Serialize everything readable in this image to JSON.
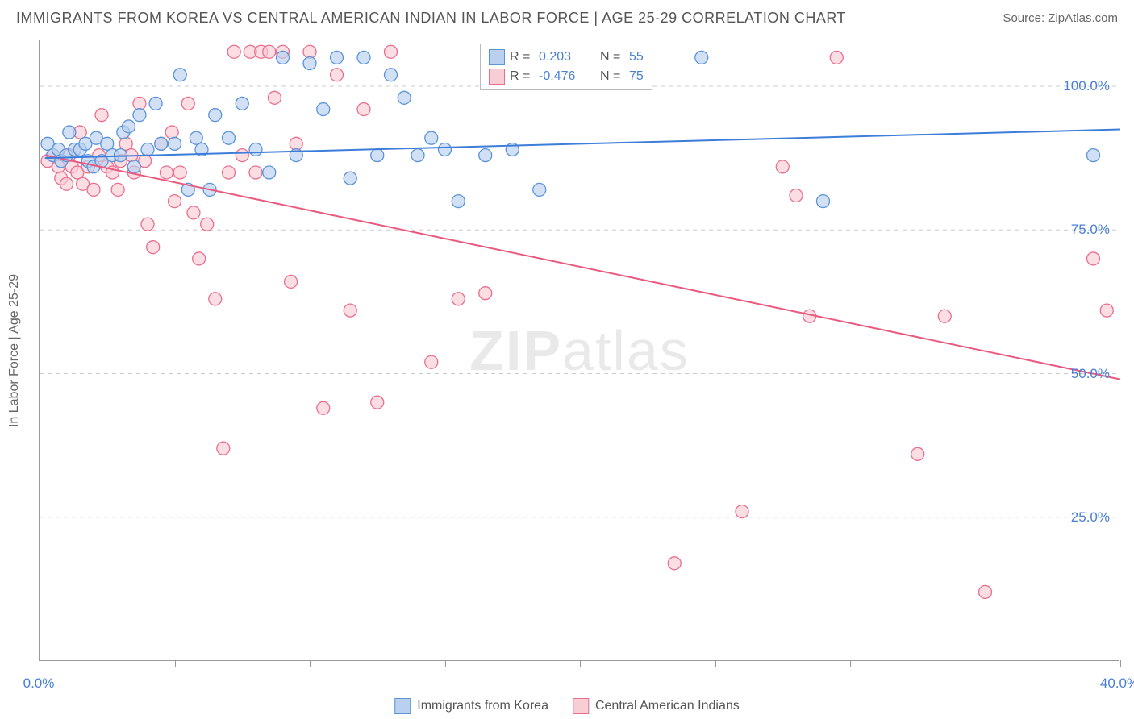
{
  "title": "IMMIGRANTS FROM KOREA VS CENTRAL AMERICAN INDIAN IN LABOR FORCE | AGE 25-29 CORRELATION CHART",
  "source": "Source: ZipAtlas.com",
  "y_axis_label": "In Labor Force | Age 25-29",
  "watermark_thin": "ZIP",
  "watermark_bold": "atlas",
  "chart": {
    "type": "scatter",
    "xlim": [
      0,
      40
    ],
    "ylim": [
      0,
      108
    ],
    "x_ticks": [
      0,
      5,
      10,
      15,
      20,
      25,
      30,
      35,
      40
    ],
    "x_tick_labels": [
      "0.0%",
      "",
      "",
      "",
      "",
      "",
      "",
      "",
      "40.0%"
    ],
    "y_ticks": [
      25,
      50,
      75,
      100
    ],
    "y_tick_labels": [
      "25.0%",
      "50.0%",
      "75.0%",
      "100.0%"
    ],
    "grid_color": "#cccccc",
    "axis_color": "#999999",
    "background_color": "#ffffff",
    "marker_radius": 8,
    "marker_stroke_width": 1.3,
    "line_width": 2,
    "series": [
      {
        "id": "korea",
        "label": "Immigrants from Korea",
        "fill_color": "#b9d0ee",
        "stroke_color": "#5c94d8",
        "line_color": "#3b7dd8",
        "R": "0.203",
        "N": "55",
        "trend": {
          "x1": 0.2,
          "y1": 87.5,
          "x2": 40,
          "y2": 92.5
        },
        "points": [
          [
            0.3,
            90
          ],
          [
            0.5,
            88
          ],
          [
            0.7,
            89
          ],
          [
            0.8,
            87
          ],
          [
            1.0,
            88
          ],
          [
            1.1,
            92
          ],
          [
            1.3,
            89
          ],
          [
            1.5,
            89
          ],
          [
            1.7,
            90
          ],
          [
            1.8,
            87
          ],
          [
            2.0,
            86
          ],
          [
            2.1,
            91
          ],
          [
            2.3,
            87
          ],
          [
            2.5,
            90
          ],
          [
            2.7,
            88
          ],
          [
            3.0,
            88
          ],
          [
            3.1,
            92
          ],
          [
            3.3,
            93
          ],
          [
            3.5,
            86
          ],
          [
            3.7,
            95
          ],
          [
            4.0,
            89
          ],
          [
            4.3,
            97
          ],
          [
            4.5,
            90
          ],
          [
            5.0,
            90
          ],
          [
            5.2,
            102
          ],
          [
            5.5,
            82
          ],
          [
            5.8,
            91
          ],
          [
            6.0,
            89
          ],
          [
            6.3,
            82
          ],
          [
            6.5,
            95
          ],
          [
            7.0,
            91
          ],
          [
            7.5,
            97
          ],
          [
            8.0,
            89
          ],
          [
            8.5,
            85
          ],
          [
            9.0,
            105
          ],
          [
            9.5,
            88
          ],
          [
            10.0,
            104
          ],
          [
            10.5,
            96
          ],
          [
            11.0,
            105
          ],
          [
            11.5,
            84
          ],
          [
            12.0,
            105
          ],
          [
            12.5,
            88
          ],
          [
            13.0,
            102
          ],
          [
            13.5,
            98
          ],
          [
            14.0,
            88
          ],
          [
            14.5,
            91
          ],
          [
            15.0,
            89
          ],
          [
            15.5,
            80
          ],
          [
            16.5,
            88
          ],
          [
            17.5,
            89
          ],
          [
            18.5,
            82
          ],
          [
            24.5,
            105
          ],
          [
            29.0,
            80
          ],
          [
            39.0,
            88
          ]
        ]
      },
      {
        "id": "cai",
        "label": "Central American Indians",
        "fill_color": "#f7cdd6",
        "stroke_color": "#ea6f8e",
        "line_color": "#ea5a80",
        "R": "-0.476",
        "N": "75",
        "trend": {
          "x1": 0.2,
          "y1": 88,
          "x2": 40,
          "y2": 49
        },
        "points": [
          [
            0.3,
            87
          ],
          [
            0.5,
            88
          ],
          [
            0.7,
            86
          ],
          [
            0.8,
            84
          ],
          [
            1.0,
            83
          ],
          [
            1.1,
            88
          ],
          [
            1.2,
            86
          ],
          [
            1.4,
            85
          ],
          [
            1.5,
            92
          ],
          [
            1.6,
            83
          ],
          [
            1.8,
            86
          ],
          [
            2.0,
            82
          ],
          [
            2.2,
            88
          ],
          [
            2.3,
            95
          ],
          [
            2.5,
            86
          ],
          [
            2.7,
            85
          ],
          [
            2.9,
            82
          ],
          [
            3.0,
            87
          ],
          [
            3.2,
            90
          ],
          [
            3.4,
            88
          ],
          [
            3.5,
            85
          ],
          [
            3.7,
            97
          ],
          [
            3.9,
            87
          ],
          [
            4.0,
            76
          ],
          [
            4.2,
            72
          ],
          [
            4.5,
            90
          ],
          [
            4.7,
            85
          ],
          [
            4.9,
            92
          ],
          [
            5.0,
            80
          ],
          [
            5.2,
            85
          ],
          [
            5.5,
            97
          ],
          [
            5.7,
            78
          ],
          [
            5.9,
            70
          ],
          [
            6.2,
            76
          ],
          [
            6.5,
            63
          ],
          [
            6.8,
            37
          ],
          [
            7.0,
            85
          ],
          [
            7.2,
            106
          ],
          [
            7.5,
            88
          ],
          [
            7.8,
            106
          ],
          [
            8.0,
            85
          ],
          [
            8.2,
            106
          ],
          [
            8.5,
            106
          ],
          [
            8.7,
            98
          ],
          [
            9.0,
            106
          ],
          [
            9.3,
            66
          ],
          [
            9.5,
            90
          ],
          [
            10.0,
            106
          ],
          [
            10.5,
            44
          ],
          [
            11.0,
            102
          ],
          [
            11.5,
            61
          ],
          [
            12.0,
            96
          ],
          [
            12.5,
            45
          ],
          [
            13.0,
            106
          ],
          [
            14.5,
            52
          ],
          [
            15.5,
            63
          ],
          [
            16.5,
            64
          ],
          [
            23.5,
            17
          ],
          [
            26.0,
            26
          ],
          [
            27.5,
            86
          ],
          [
            28.0,
            81
          ],
          [
            28.5,
            60
          ],
          [
            29.5,
            105
          ],
          [
            32.5,
            36
          ],
          [
            33.5,
            60
          ],
          [
            35.0,
            12
          ],
          [
            39.0,
            70
          ],
          [
            39.5,
            61
          ]
        ]
      }
    ]
  },
  "legend_bottom": [
    {
      "swatch_fill": "#b9d0ee",
      "swatch_stroke": "#5c94d8",
      "label": "Immigrants from Korea"
    },
    {
      "swatch_fill": "#f7cdd6",
      "swatch_stroke": "#ea6f8e",
      "label": "Central American Indians"
    }
  ]
}
